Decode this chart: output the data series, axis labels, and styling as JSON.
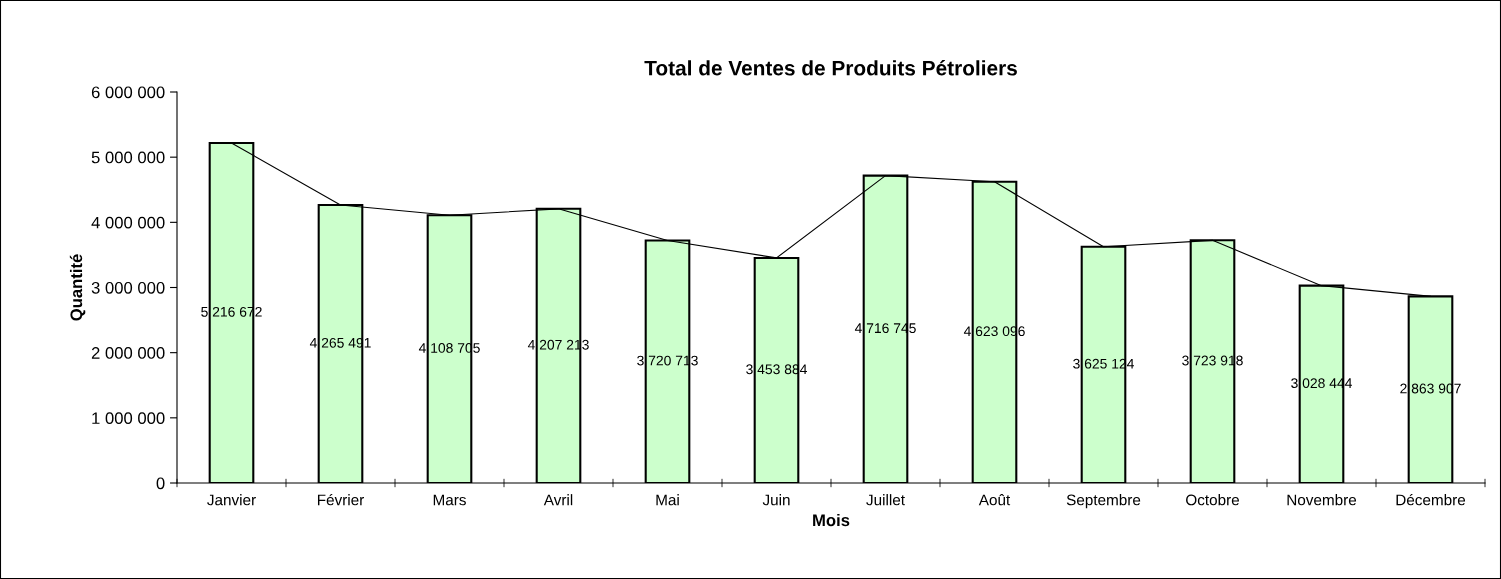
{
  "chart_data": {
    "type": "bar",
    "title": "Total de Ventes de Produits Pétroliers",
    "xlabel": "Mois",
    "ylabel": "Quantité",
    "categories": [
      "Janvier",
      "Février",
      "Mars",
      "Avril",
      "Mai",
      "Juin",
      "Juillet",
      "Août",
      "Septembre",
      "Octobre",
      "Novembre",
      "Décembre"
    ],
    "series": [
      {
        "color": "#ccffcc",
        "values": [
          5216672,
          4265491,
          4108705,
          4207213,
          3720713,
          3453884,
          4716745,
          4623096,
          3625124,
          3723918,
          3028444,
          2863907
        ],
        "value_labels": [
          "5 216 672",
          "4 265 491",
          "4 108 705",
          "4 207 213",
          "3 720 713",
          "3 453 884",
          "4 716 745",
          "4 623 096",
          "3 625 124",
          "3 723 918",
          "3 028 444",
          "2 863 907"
        ]
      },
      {
        "type": "line",
        "color": "#000000",
        "values": [
          5216672,
          4265491,
          4108705,
          4207213,
          3720713,
          3453884,
          4716745,
          4623096,
          3625124,
          3723918,
          3028444,
          2863907
        ]
      }
    ],
    "ylim": [
      0,
      6000000
    ],
    "yticks": [
      0,
      {
        "value": 1000000,
        "label": "1 000 000"
      },
      {
        "value": 2000000,
        "label": "2 000 000"
      },
      {
        "value": 3000000,
        "label": "3 000 000"
      },
      {
        "value": 4000000,
        "label": "4 000 000"
      },
      {
        "value": 5000000,
        "label": "5 000 000"
      },
      {
        "value": 6000000,
        "label": "6 000 000"
      }
    ],
    "grid": false,
    "legend": false,
    "marker": "none",
    "line_style": "solid"
  }
}
